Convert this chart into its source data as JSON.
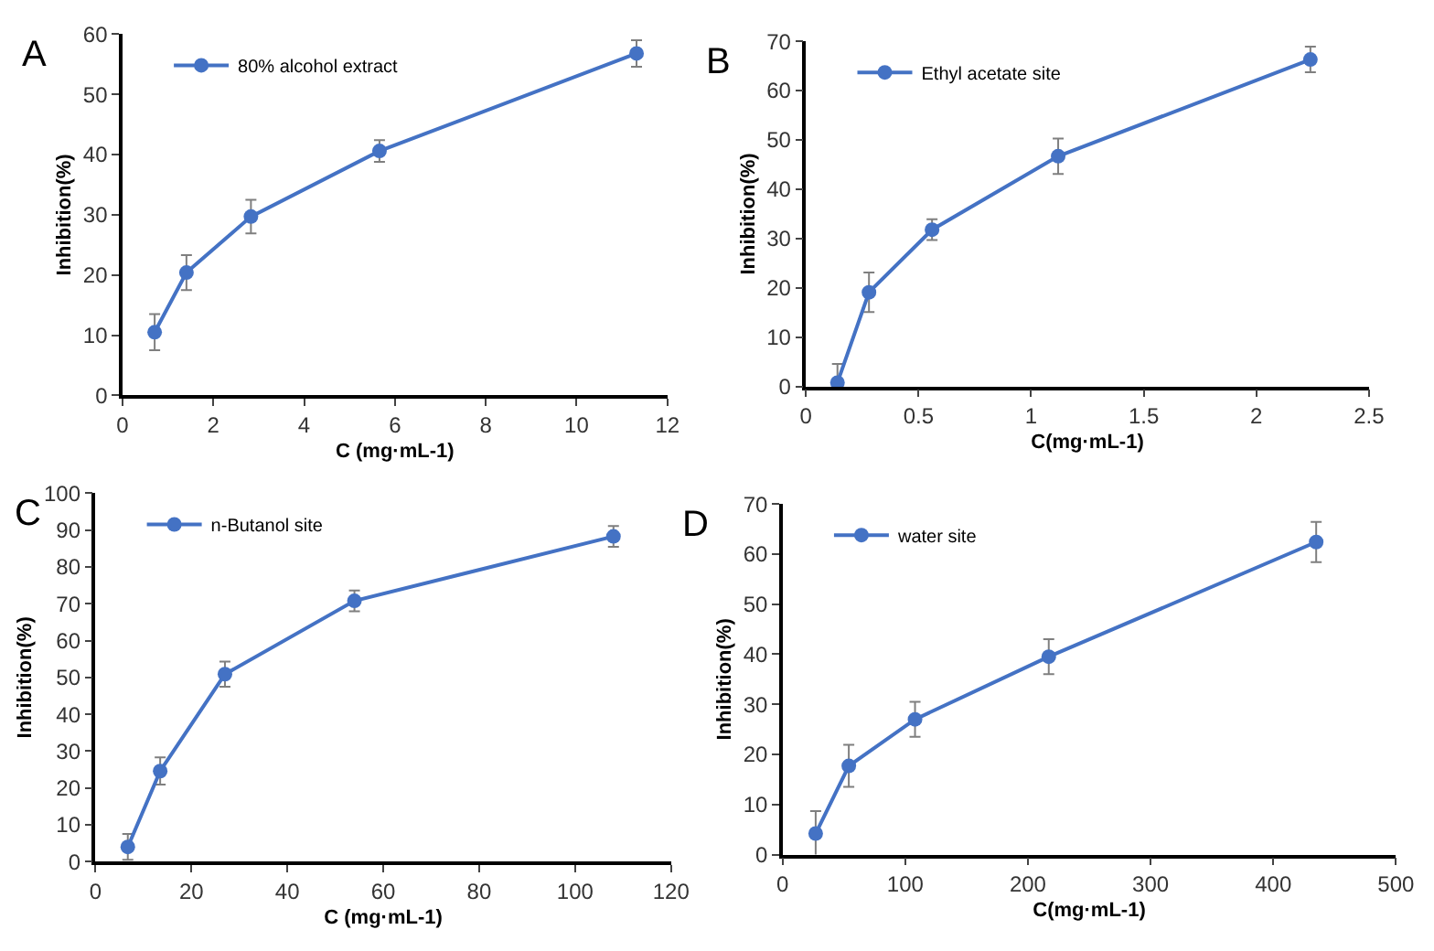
{
  "chart_data": [
    {
      "type": "line",
      "annotations": [
        "A"
      ],
      "xlabel": "C (mg·mL-1)",
      "ylabel": "Inhibition(%)",
      "legend": "top left",
      "marker": "circle",
      "line_style": "solid",
      "xlim": [
        0,
        12
      ],
      "xticks": [
        0,
        2,
        4,
        6,
        8,
        10,
        12
      ],
      "ylim": [
        0,
        60
      ],
      "yticks": [
        0,
        10,
        20,
        30,
        40,
        50,
        60
      ],
      "series": [
        {
          "name": "80% alcohol extract",
          "color": "#4472c4",
          "x": [
            0.71,
            1.41,
            2.83,
            5.66,
            11.32
          ],
          "values": [
            10.5,
            20.4,
            29.7,
            40.6,
            56.8
          ],
          "errors": [
            3,
            2.9,
            2.8,
            1.8,
            2.2
          ]
        }
      ]
    },
    {
      "type": "line",
      "annotations": [
        "B"
      ],
      "xlabel": "C(mg·mL-1)",
      "ylabel": "Inhibition(%)",
      "legend": "top left",
      "marker": "circle",
      "line_style": "solid",
      "xlim": [
        0,
        2.5
      ],
      "xticks": [
        0,
        0.5,
        1,
        1.5,
        2,
        2.5
      ],
      "ylim": [
        0,
        70
      ],
      "yticks": [
        0,
        10,
        20,
        30,
        40,
        50,
        60,
        70
      ],
      "series": [
        {
          "name": "Ethyl acetate site",
          "color": "#4472c4",
          "x": [
            0.14,
            0.28,
            0.56,
            1.12,
            2.24
          ],
          "values": [
            0.8,
            19.1,
            31.8,
            46.7,
            66.3
          ],
          "errors": [
            3.8,
            4,
            2.1,
            3.6,
            2.6
          ]
        }
      ]
    },
    {
      "type": "line",
      "annotations": [
        "C"
      ],
      "xlabel": "C (mg·mL-1)",
      "ylabel": "Inhibition(%)",
      "legend": "top left",
      "marker": "circle",
      "line_style": "solid",
      "xlim": [
        0,
        120
      ],
      "xticks": [
        0,
        20,
        40,
        60,
        80,
        100,
        120
      ],
      "ylim": [
        0,
        100
      ],
      "yticks": [
        0,
        10,
        20,
        30,
        40,
        50,
        60,
        70,
        80,
        90,
        100
      ],
      "series": [
        {
          "name": "n-Butanol site",
          "color": "#4472c4",
          "x": [
            6.75,
            13.5,
            27,
            54,
            108
          ],
          "values": [
            4,
            24.6,
            50.9,
            70.8,
            88.3
          ],
          "errors": [
            3.5,
            3.7,
            3.4,
            2.8,
            2.8
          ]
        }
      ]
    },
    {
      "type": "line",
      "annotations": [
        "D"
      ],
      "xlabel": "C(mg·mL-1)",
      "ylabel": "Inhibition(%)",
      "legend": "top left",
      "marker": "circle",
      "line_style": "solid",
      "xlim": [
        0,
        500
      ],
      "xticks": [
        0,
        100,
        200,
        300,
        400,
        500
      ],
      "ylim": [
        0,
        70
      ],
      "yticks": [
        0,
        10,
        20,
        30,
        40,
        50,
        60,
        70
      ],
      "series": [
        {
          "name": "water site",
          "color": "#4472c4",
          "x": [
            27,
            54,
            108,
            217,
            435
          ],
          "values": [
            4.2,
            17.7,
            27,
            39.5,
            62.4
          ],
          "errors": [
            4.5,
            4.2,
            3.5,
            3.5,
            4
          ]
        }
      ]
    }
  ]
}
